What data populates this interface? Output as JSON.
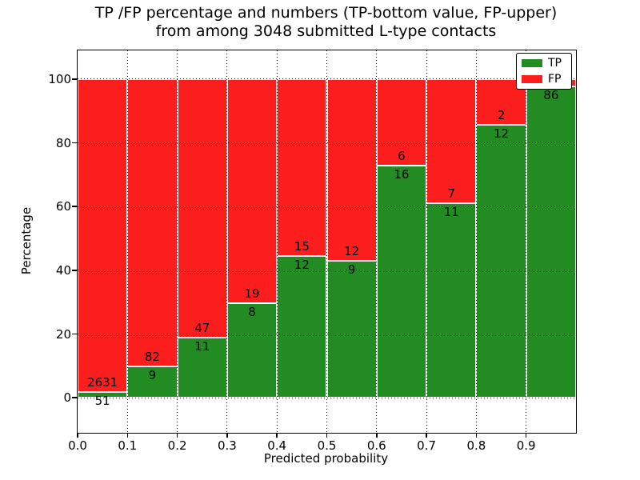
{
  "chart_data": {
    "type": "bar",
    "stacked": true,
    "normalized_to_percent": true,
    "title_lines": [
      "TP /FP percentage and numbers (TP-bottom value, FP-upper)",
      "from among 3048 submitted L-type contacts"
    ],
    "xlabel": "Predicted probability",
    "ylabel": "Percentage",
    "x_tick_labels": [
      "0.0",
      "0.1",
      "0.2",
      "0.3",
      "0.4",
      "0.5",
      "0.6",
      "0.7",
      "0.8",
      "0.9"
    ],
    "x_bin_edges": [
      0.0,
      0.1,
      0.2,
      0.3,
      0.4,
      0.5,
      0.6,
      0.7,
      0.8,
      0.9,
      1.0
    ],
    "y_ticks": [
      0,
      20,
      40,
      60,
      80,
      100
    ],
    "ylim": [
      -11,
      109
    ],
    "xlim": [
      0,
      1
    ],
    "grid": "dotted",
    "legend_position": "upper right",
    "series": [
      {
        "name": "TP",
        "color": "#228b22",
        "counts": [
          51,
          9,
          11,
          8,
          12,
          9,
          16,
          11,
          12,
          86
        ]
      },
      {
        "name": "FP",
        "color": "#fc1d1d",
        "counts": [
          2631,
          82,
          47,
          19,
          15,
          12,
          6,
          7,
          2,
          2
        ]
      }
    ],
    "fp_label_visible": [
      true,
      true,
      true,
      true,
      true,
      true,
      true,
      true,
      true,
      false
    ],
    "total_submitted_contacts": 3048
  }
}
